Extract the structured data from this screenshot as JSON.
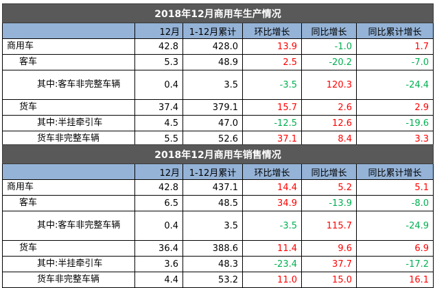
{
  "colors": {
    "title_bg": "#595959",
    "header_bg": "#95b3d7",
    "positive": "#ff0000",
    "negative": "#00b050"
  },
  "tables": [
    {
      "title": "2018年12月商用车生产情况",
      "headers": [
        "",
        "12月",
        "1-12月累计",
        "环比增长",
        "同比增长",
        "同比累计增长"
      ],
      "rows": [
        {
          "label": "商用车",
          "level": 0,
          "values": [
            "42.8",
            "428.0",
            "13.9",
            "-1.0",
            "1.7"
          ]
        },
        {
          "label": "客车",
          "level": 1,
          "values": [
            "5.3",
            "48.9",
            "2.5",
            "-20.2",
            "-7.0"
          ]
        },
        {
          "label": "其中:客车非完整车辆",
          "level": 2,
          "values": [
            "0.4",
            "3.5",
            "-3.5",
            "120.3",
            "-24.4"
          ]
        },
        {
          "label": "货车",
          "level": 1,
          "values": [
            "37.4",
            "379.1",
            "15.7",
            "2.6",
            "2.9"
          ]
        },
        {
          "label": "其中:半挂牵引车",
          "level": 2,
          "values": [
            "4.5",
            "47.0",
            "-12.5",
            "12.6",
            "-19.6"
          ]
        },
        {
          "label": "货车非完整车辆",
          "level": 2,
          "values": [
            "5.5",
            "52.6",
            "37.1",
            "8.4",
            "3.3"
          ]
        }
      ]
    },
    {
      "title": "2018年12月商用车销售情况",
      "headers": [
        "",
        "12月",
        "1-12月累计",
        "环比增长",
        "同比增长",
        "同比累计增长"
      ],
      "rows": [
        {
          "label": "商用车",
          "level": 0,
          "values": [
            "42.8",
            "437.1",
            "14.4",
            "5.2",
            "5.1"
          ]
        },
        {
          "label": "客车",
          "level": 1,
          "values": [
            "6.5",
            "48.5",
            "34.9",
            "-13.9",
            "-8.0"
          ]
        },
        {
          "label": "其中:客车非完整车辆",
          "level": 2,
          "values": [
            "0.4",
            "3.5",
            "-3.5",
            "115.7",
            "-24.9"
          ]
        },
        {
          "label": "货车",
          "level": 1,
          "values": [
            "36.4",
            "388.6",
            "11.4",
            "9.6",
            "6.9"
          ]
        },
        {
          "label": "其中:半挂牵引车",
          "level": 2,
          "values": [
            "3.6",
            "48.3",
            "-23.4",
            "37.7",
            "-17.2"
          ]
        },
        {
          "label": "货车非完整车辆",
          "level": 2,
          "values": [
            "4.4",
            "53.2",
            "11.0",
            "15.0",
            "16.1"
          ]
        }
      ]
    }
  ]
}
